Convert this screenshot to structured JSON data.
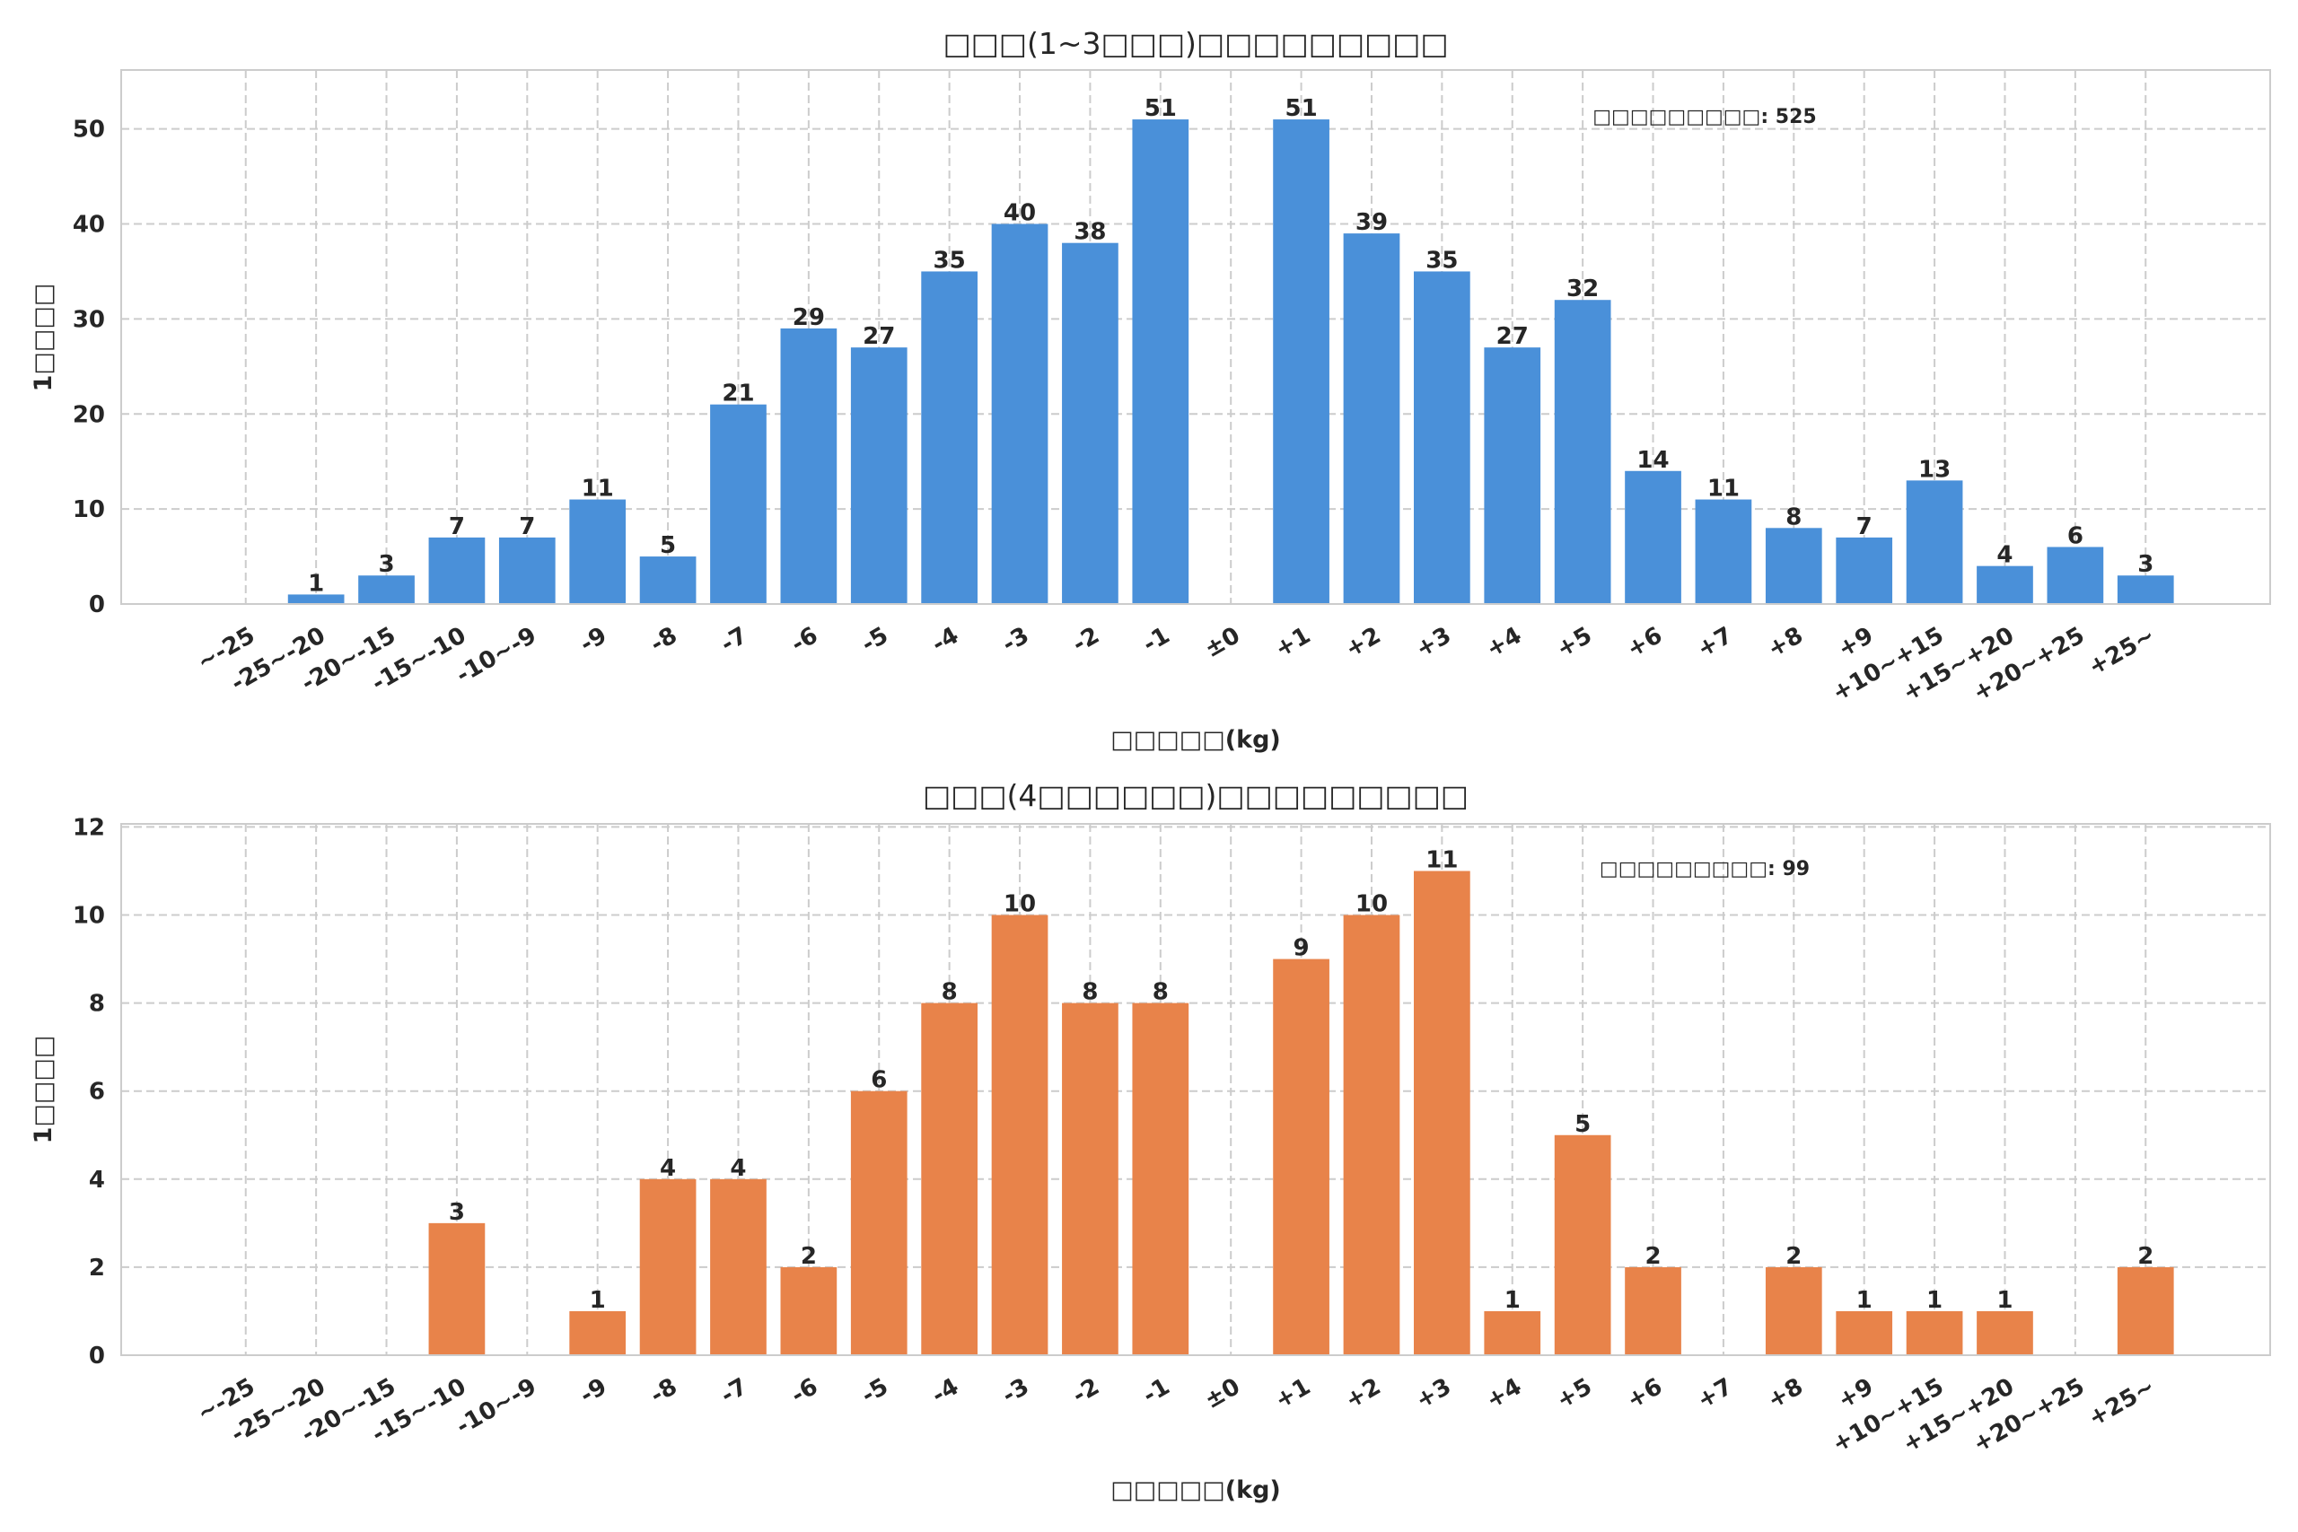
{
  "chart_data": [
    {
      "type": "bar",
      "title": "□□□(1~3□□□)□□□□□□□□□",
      "xlabel": "□□□□□(kg)",
      "ylabel": "1□□□□",
      "annotation": "□□□□□□□□□: 525",
      "color": "#4a90d9",
      "ylim": [
        0,
        56.2
      ],
      "yticks": [
        0,
        10,
        20,
        30,
        40,
        50
      ],
      "grid": true,
      "categories": [
        "~-25",
        "-25~-20",
        "-20~-15",
        "-15~-10",
        "-10~-9",
        "-9",
        "-8",
        "-7",
        "-6",
        "-5",
        "-4",
        "-3",
        "-2",
        "-1",
        "±0",
        "+1",
        "+2",
        "+3",
        "+4",
        "+5",
        "+6",
        "+7",
        "+8",
        "+9",
        "+10~+15",
        "+15~+20",
        "+20~+25",
        "+25~"
      ],
      "values": [
        0,
        1,
        3,
        7,
        7,
        11,
        5,
        21,
        29,
        27,
        35,
        40,
        38,
        51,
        0,
        51,
        39,
        35,
        27,
        32,
        14,
        11,
        8,
        7,
        13,
        4,
        6,
        3
      ]
    },
    {
      "type": "bar",
      "title": "□□□(4□□□□□□)□□□□□□□□□",
      "xlabel": "□□□□□(kg)",
      "ylabel": "1□□□□",
      "annotation": "□□□□□□□□□: 99",
      "color": "#e8834a",
      "ylim": [
        0,
        12.07
      ],
      "yticks": [
        0,
        2,
        4,
        6,
        8,
        10,
        12
      ],
      "grid": true,
      "categories": [
        "~-25",
        "-25~-20",
        "-20~-15",
        "-15~-10",
        "-10~-9",
        "-9",
        "-8",
        "-7",
        "-6",
        "-5",
        "-4",
        "-3",
        "-2",
        "-1",
        "±0",
        "+1",
        "+2",
        "+3",
        "+4",
        "+5",
        "+6",
        "+7",
        "+8",
        "+9",
        "+10~+15",
        "+15~+20",
        "+20~+25",
        "+25~"
      ],
      "values": [
        0,
        0,
        0,
        3,
        0,
        1,
        4,
        4,
        2,
        6,
        8,
        10,
        8,
        8,
        0,
        9,
        10,
        11,
        1,
        5,
        2,
        0,
        2,
        1,
        1,
        1,
        0,
        2
      ]
    }
  ]
}
